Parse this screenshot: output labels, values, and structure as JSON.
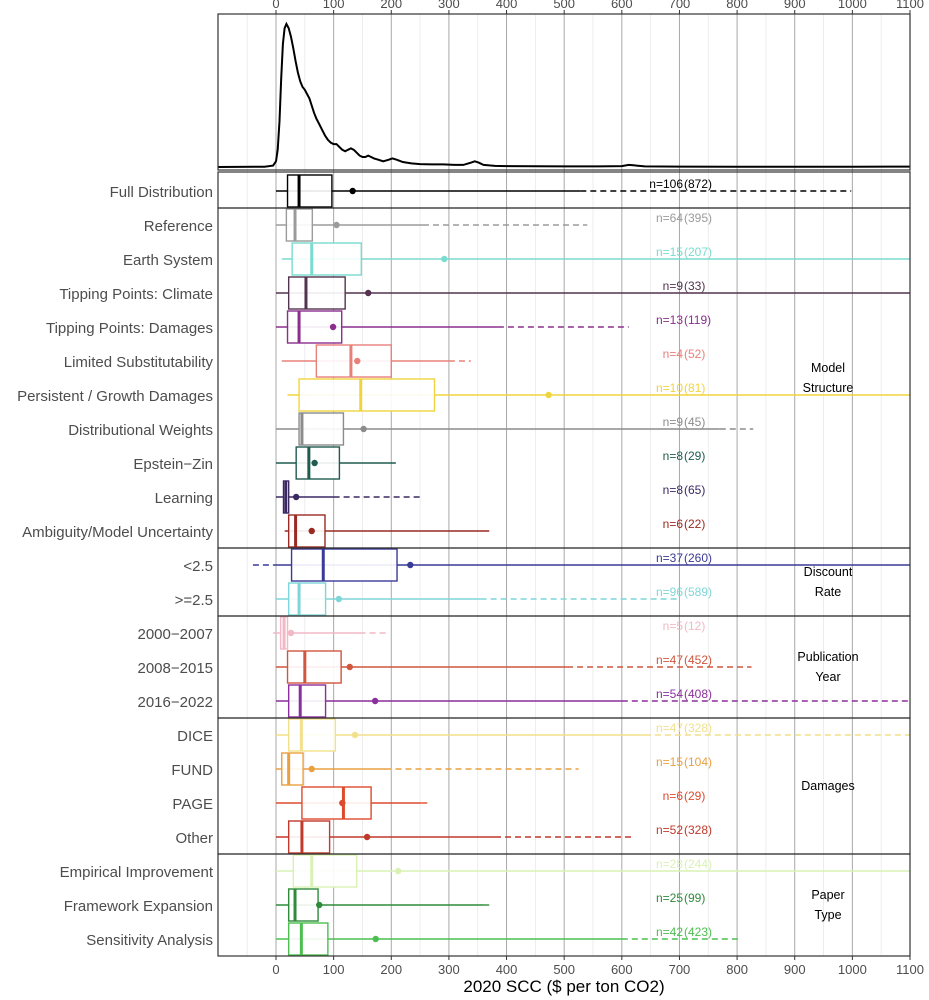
{
  "chart_data": {
    "type": "boxplot",
    "xlabel": "2020 SCC ($ per ton CO2)",
    "xlim": [
      -100,
      1100
    ],
    "xticks": [
      0,
      100,
      200,
      300,
      400,
      500,
      600,
      700,
      800,
      900,
      1000,
      1100
    ],
    "grid": true,
    "density": [
      [
        -100,
        0
      ],
      [
        -20,
        0.2
      ],
      [
        -5,
        1
      ],
      [
        0,
        4
      ],
      [
        3,
        12
      ],
      [
        6,
        32
      ],
      [
        9,
        62
      ],
      [
        12,
        86
      ],
      [
        15,
        97
      ],
      [
        18,
        100
      ],
      [
        22,
        97
      ],
      [
        26,
        91
      ],
      [
        30,
        83
      ],
      [
        34,
        74
      ],
      [
        38,
        66
      ],
      [
        42,
        60
      ],
      [
        46,
        56
      ],
      [
        50,
        54
      ],
      [
        54,
        51
      ],
      [
        58,
        48
      ],
      [
        62,
        43
      ],
      [
        66,
        38
      ],
      [
        70,
        34
      ],
      [
        75,
        30
      ],
      [
        80,
        26
      ],
      [
        85,
        22
      ],
      [
        90,
        19
      ],
      [
        95,
        17
      ],
      [
        100,
        16
      ],
      [
        105,
        16
      ],
      [
        110,
        14
      ],
      [
        115,
        12
      ],
      [
        120,
        11
      ],
      [
        125,
        12
      ],
      [
        130,
        13
      ],
      [
        135,
        12
      ],
      [
        140,
        10
      ],
      [
        145,
        8
      ],
      [
        150,
        7
      ],
      [
        155,
        7
      ],
      [
        160,
        8
      ],
      [
        165,
        7
      ],
      [
        170,
        6
      ],
      [
        178,
        5
      ],
      [
        186,
        4
      ],
      [
        195,
        5
      ],
      [
        202,
        6
      ],
      [
        210,
        5
      ],
      [
        220,
        3.5
      ],
      [
        235,
        2.5
      ],
      [
        250,
        2
      ],
      [
        270,
        1.8
      ],
      [
        290,
        1.8
      ],
      [
        310,
        1.5
      ],
      [
        325,
        1.5
      ],
      [
        338,
        3
      ],
      [
        345,
        4
      ],
      [
        352,
        3
      ],
      [
        360,
        1.5
      ],
      [
        380,
        0.8
      ],
      [
        400,
        0.6
      ],
      [
        450,
        0.5
      ],
      [
        500,
        0.4
      ],
      [
        560,
        0.4
      ],
      [
        600,
        0.6
      ],
      [
        612,
        1.5
      ],
      [
        620,
        1.2
      ],
      [
        640,
        0.4
      ],
      [
        700,
        0.3
      ],
      [
        800,
        0.2
      ],
      [
        900,
        0.2
      ],
      [
        1000,
        0.2
      ],
      [
        1100,
        0.3
      ]
    ],
    "groups": [
      {
        "name": "",
        "rows": [
          {
            "label": "Full Distribution",
            "color": "#000000",
            "q1": 20,
            "median": 40,
            "q3": 97,
            "mean": 133,
            "whisker_lo": 0,
            "whisker_hi": 528,
            "dash_hi": 998,
            "n": "n=106",
            "k": "(872)"
          }
        ]
      },
      {
        "name": "Model\nStructure",
        "rows": [
          {
            "label": "Reference",
            "color": "#9b9b9b",
            "q1": 18,
            "median": 33,
            "q3": 63,
            "mean": 105,
            "whisker_lo": 0,
            "whisker_hi": 255,
            "dash_hi": 540,
            "n": "n=64",
            "k": "(395)"
          },
          {
            "label": "Earth System",
            "color": "#78dccf",
            "q1": 28,
            "median": 62,
            "q3": 148,
            "mean": 292,
            "whisker_lo": 10,
            "whisker_hi": 1100,
            "dash_hi": null,
            "n": "n=15",
            "k": "(207)"
          },
          {
            "label": "Tipping Points: Climate",
            "color": "#54334f",
            "q1": 22,
            "median": 52,
            "q3": 120,
            "mean": 160,
            "whisker_lo": 0,
            "whisker_hi": 1100,
            "dash_hi": null,
            "n": "n=9",
            "k": "(33)"
          },
          {
            "label": "Tipping Points: Damages",
            "color": "#8a2f8e",
            "q1": 20,
            "median": 40,
            "q3": 114,
            "mean": 99,
            "whisker_lo": 0,
            "whisker_hi": 385,
            "dash_hi": 612,
            "n": "n=13",
            "k": "(119)"
          },
          {
            "label": "Limited Substitutability",
            "color": "#e8807a",
            "q1": 70,
            "median": 130,
            "q3": 200,
            "mean": 141,
            "whisker_lo": 10,
            "whisker_hi": 300,
            "dash_hi": 338,
            "n": "n=4",
            "k": "(52)"
          },
          {
            "label": "Persistent / Growth Damages",
            "color": "#f0d43e",
            "q1": 40,
            "median": 147,
            "q3": 275,
            "mean": 473,
            "whisker_lo": 20,
            "whisker_hi": 1100,
            "dash_hi": null,
            "n": "n=10",
            "k": "(81)"
          },
          {
            "label": "Distributional Weights",
            "color": "#8c8c8c",
            "q1": 40,
            "median": 45,
            "q3": 117,
            "mean": 152,
            "whisker_lo": 0,
            "whisker_hi": 770,
            "dash_hi": 828,
            "n": "n=9",
            "k": "(45)"
          },
          {
            "label": "Epstein−Zin",
            "color": "#1f5c4f",
            "q1": 35,
            "median": 57,
            "q3": 110,
            "mean": 67,
            "whisker_lo": 0,
            "whisker_hi": 208,
            "dash_hi": null,
            "n": "n=8",
            "k": "(29)"
          },
          {
            "label": "Learning",
            "color": "#3a2863",
            "q1": 13,
            "median": 17,
            "q3": 22,
            "mean": 35,
            "whisker_lo": 0,
            "whisker_hi": 100,
            "dash_hi": 250,
            "n": "n=8",
            "k": "(65)"
          },
          {
            "label": "Ambiguity/Model Uncertainty",
            "color": "#9a2a22",
            "q1": 22,
            "median": 34,
            "q3": 85,
            "mean": 62,
            "whisker_lo": 15,
            "whisker_hi": 370,
            "dash_hi": null,
            "n": "n=6",
            "k": "(22)"
          }
        ]
      },
      {
        "name": "Discount\nRate",
        "rows": [
          {
            "label": "<2.5",
            "color": "#3a3a98",
            "q1": 27,
            "median": 82,
            "q3": 210,
            "mean": 233,
            "whisker_lo": 0,
            "whisker_hi": 1100,
            "dash_lo": -40,
            "dash_hi": null,
            "n": "n=37",
            "k": "(260)"
          },
          {
            "label": ">=2.5",
            "color": "#7fd6d8",
            "q1": 22,
            "median": 40,
            "q3": 86,
            "mean": 109,
            "whisker_lo": 0,
            "whisker_hi": 355,
            "dash_hi": 700,
            "n": "n=96",
            "k": "(589)"
          }
        ]
      },
      {
        "name": "Publication\nYear",
        "rows": [
          {
            "label": "2000−2007",
            "color": "#f2b8c6",
            "q1": 8,
            "median": 14,
            "q3": 20,
            "mean": 26,
            "whisker_lo": -5,
            "whisker_hi": 145,
            "dash_hi": 197,
            "n": "n=5",
            "k": "(12)"
          },
          {
            "label": "2008−2015",
            "color": "#d0563e",
            "q1": 20,
            "median": 50,
            "q3": 113,
            "mean": 128,
            "whisker_lo": 0,
            "whisker_hi": 505,
            "dash_hi": 825,
            "n": "n=47",
            "k": "(452)"
          },
          {
            "label": "2016−2022",
            "color": "#8a2f9c",
            "q1": 22,
            "median": 42,
            "q3": 86,
            "mean": 172,
            "whisker_lo": 0,
            "whisker_hi": 600,
            "dash_hi": 1100,
            "n": "n=54",
            "k": "(408)"
          }
        ]
      },
      {
        "name": "Damages",
        "rows": [
          {
            "label": "DICE",
            "color": "#f2e08a",
            "q1": 22,
            "median": 44,
            "q3": 103,
            "mean": 137,
            "whisker_lo": 0,
            "whisker_hi": 640,
            "dash_hi": 1100,
            "n": "n=47",
            "k": "(328)"
          },
          {
            "label": "FUND",
            "color": "#e9a040",
            "q1": 10,
            "median": 22,
            "q3": 47,
            "mean": 62,
            "whisker_lo": 0,
            "whisker_hi": 190,
            "dash_hi": 525,
            "n": "n=15",
            "k": "(104)"
          },
          {
            "label": "PAGE",
            "color": "#de4a2c",
            "q1": 45,
            "median": 117,
            "q3": 165,
            "mean": 115,
            "whisker_lo": 0,
            "whisker_hi": 252,
            "dash_hi": 268,
            "n": "n=6",
            "k": "(29)"
          },
          {
            "label": "Other",
            "color": "#c0392b",
            "q1": 22,
            "median": 45,
            "q3": 93,
            "mean": 158,
            "whisker_lo": 0,
            "whisker_hi": 380,
            "dash_hi": 618,
            "n": "n=52",
            "k": "(328)"
          }
        ]
      },
      {
        "name": "Paper\nType",
        "rows": [
          {
            "label": "Empirical Improvement",
            "color": "#d9f2b4",
            "q1": 30,
            "median": 62,
            "q3": 140,
            "mean": 212,
            "whisker_lo": 0,
            "whisker_hi": 1100,
            "dash_hi": null,
            "n": "n=28",
            "k": "(244)"
          },
          {
            "label": "Framework Expansion",
            "color": "#2e8b3a",
            "q1": 22,
            "median": 33,
            "q3": 73,
            "mean": 75,
            "whisker_lo": 0,
            "whisker_hi": 360,
            "dash_hi": 370,
            "n": "n=25",
            "k": "(99)"
          },
          {
            "label": "Sensitivity Analysis",
            "color": "#4cbf50",
            "q1": 22,
            "median": 44,
            "q3": 90,
            "mean": 173,
            "whisker_lo": 0,
            "whisker_hi": 600,
            "dash_hi": 808,
            "n": "n=42",
            "k": "(423)"
          }
        ]
      }
    ]
  }
}
